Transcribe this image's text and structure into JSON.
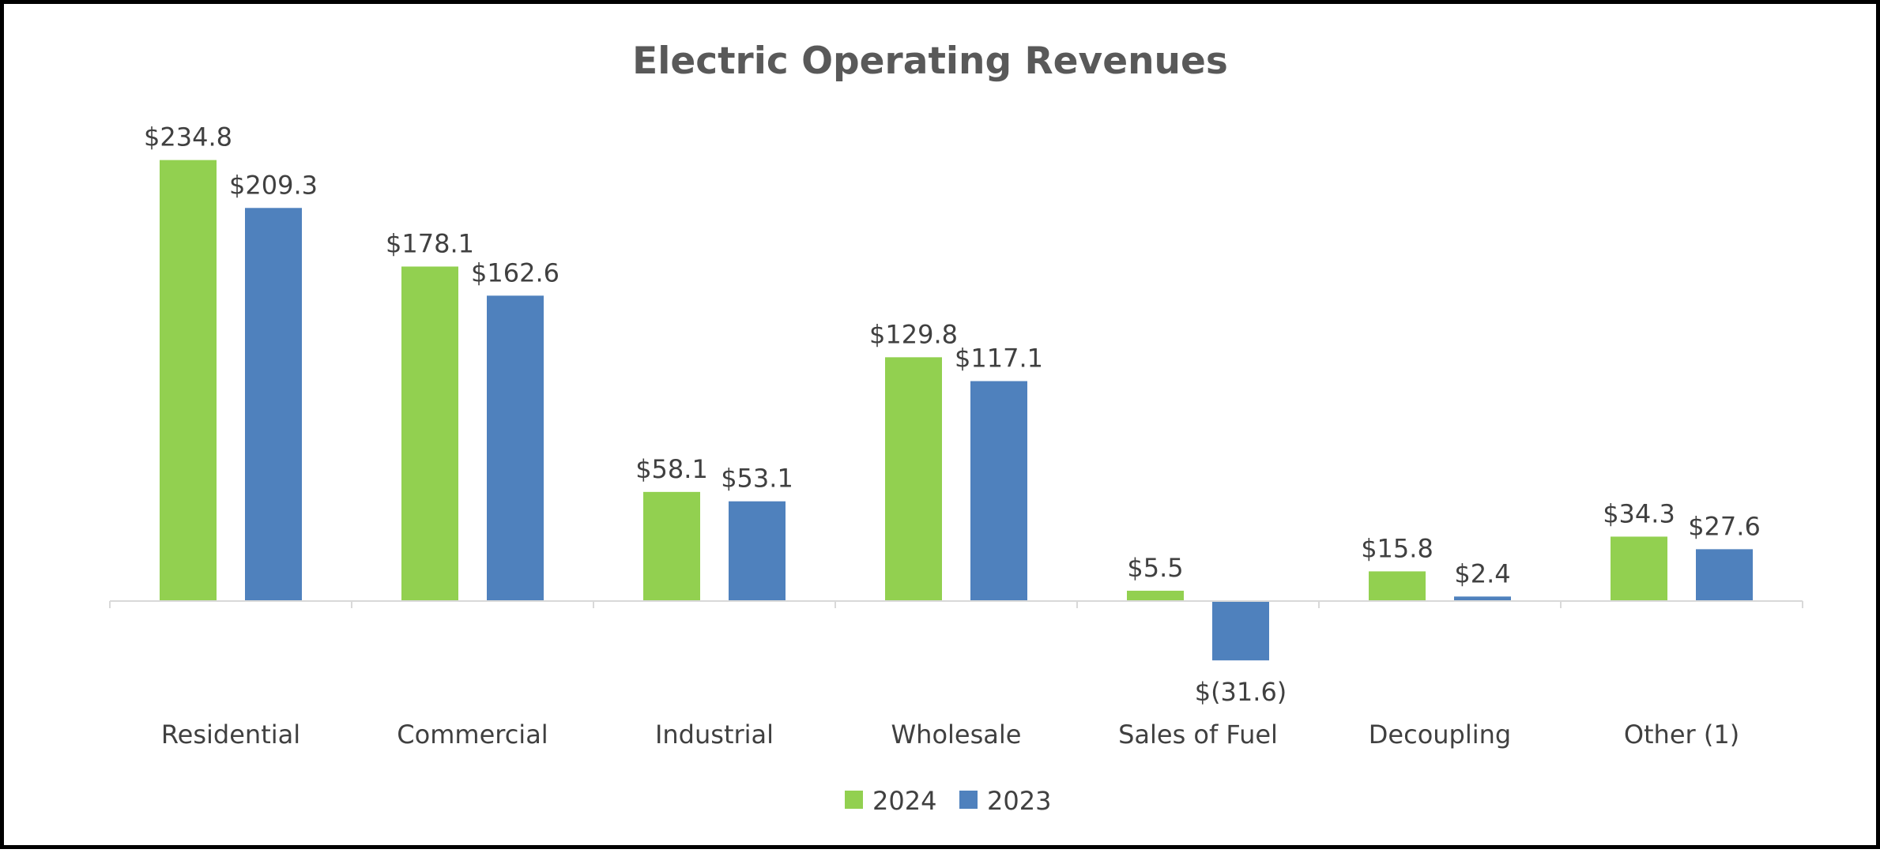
{
  "chart_data": {
    "type": "bar",
    "title": "Electric Operating Revenues",
    "xlabel": "",
    "ylabel": "",
    "categories": [
      "Residential",
      "Commercial",
      "Industrial",
      "Wholesale",
      "Sales of Fuel",
      "Decoupling",
      "Other (1)"
    ],
    "series": [
      {
        "name": "2024",
        "color": "#92D050",
        "values": [
          234.8,
          178.1,
          58.1,
          129.8,
          5.5,
          15.8,
          34.3
        ],
        "labels": [
          "$234.8",
          "$178.1",
          "$58.1",
          "$129.8",
          "$5.5",
          "$15.8",
          "$34.3"
        ]
      },
      {
        "name": "2023",
        "color": "#4F81BD",
        "values": [
          209.3,
          162.6,
          53.1,
          117.1,
          -31.6,
          2.4,
          27.6
        ],
        "labels": [
          "$209.3",
          "$162.6",
          "$53.1",
          "$117.1",
          "$(31.6)",
          "$2.4",
          "$27.6"
        ]
      }
    ],
    "ylim": [
      -50,
      250
    ],
    "grid": false,
    "legend": "bottom-center",
    "axis_color": "#D9D9D9"
  }
}
